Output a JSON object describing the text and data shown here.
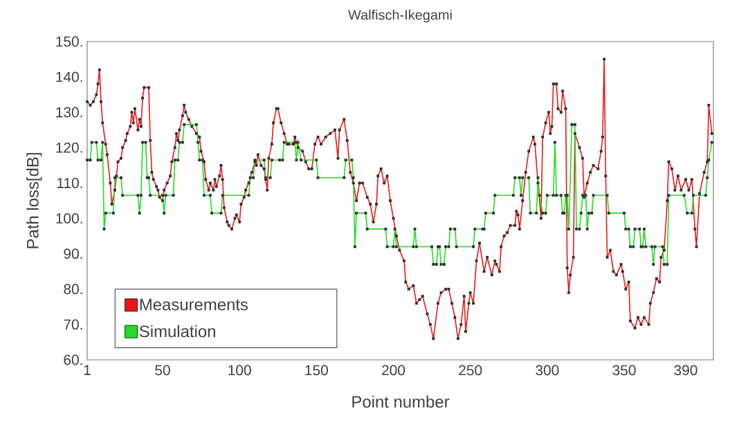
{
  "chart_data": {
    "type": "line",
    "title": "Walfisch-Ikegami",
    "xlabel": "Point number",
    "ylabel": "Path loss[dB]",
    "xlim": [
      1,
      408
    ],
    "xticks": [
      1,
      50,
      100,
      150,
      200,
      250,
      300,
      350,
      390
    ],
    "ylim": [
      60,
      150
    ],
    "yticks": [
      {
        "value": 60,
        "label": "60."
      },
      {
        "value": 70,
        "label": "70."
      },
      {
        "value": 80,
        "label": "80."
      },
      {
        "value": 90,
        "label": "90."
      },
      {
        "value": 100,
        "label": "100."
      },
      {
        "value": 110,
        "label": "110."
      },
      {
        "value": 120,
        "label": "120."
      },
      {
        "value": 130,
        "label": "130."
      },
      {
        "value": 140,
        "label": "140."
      },
      {
        "value": 150,
        "label": "150."
      }
    ],
    "legend": "bottom left",
    "marker": "square",
    "series": [
      {
        "name": "Measurements",
        "color": "#e81818",
        "x": [
          1,
          3,
          5,
          7,
          8,
          9,
          10,
          11,
          13,
          14,
          16,
          17,
          19,
          20,
          21,
          23,
          24,
          26,
          27,
          29,
          30,
          31,
          32,
          34,
          35,
          36,
          37,
          38,
          41,
          42,
          43,
          44,
          46,
          47,
          48,
          50,
          51,
          53,
          55,
          56,
          58,
          59,
          60,
          61,
          63,
          64,
          65,
          67,
          69,
          72,
          74,
          75,
          77,
          78,
          80,
          81,
          83,
          84,
          85,
          87,
          88,
          89,
          90,
          92,
          93,
          95,
          97,
          98,
          100,
          101,
          103,
          104,
          106,
          108,
          110,
          111,
          112,
          114,
          116,
          117,
          118,
          119,
          121,
          122,
          124,
          125,
          127,
          129,
          131,
          132,
          135,
          136,
          138,
          141,
          143,
          145,
          147,
          149,
          151,
          153,
          156,
          159,
          162,
          164,
          165,
          168,
          170,
          172,
          174,
          176,
          178,
          180,
          183,
          185,
          187,
          189,
          190,
          192,
          194,
          196,
          198,
          200,
          202,
          204,
          207,
          208,
          210,
          213,
          215,
          217,
          219,
          222,
          224,
          226,
          229,
          231,
          234,
          236,
          238,
          240,
          242,
          244,
          246,
          247,
          249,
          250,
          252,
          254,
          256,
          259,
          261,
          264,
          266,
          267,
          269,
          270,
          272,
          274,
          276,
          279,
          280,
          281,
          282,
          284,
          286,
          288,
          291,
          292,
          294,
          296,
          297,
          299,
          301,
          302,
          303,
          304,
          306,
          307,
          309,
          310,
          312,
          313,
          314,
          315,
          317,
          318,
          321,
          323,
          324,
          326,
          328,
          330,
          333,
          335,
          336,
          337,
          338,
          339,
          341,
          343,
          345,
          348,
          349,
          351,
          353,
          354,
          357,
          359,
          361,
          363,
          366,
          367,
          369,
          371,
          373,
          374,
          376,
          378,
          379,
          381,
          383,
          385,
          387,
          390,
          392,
          394,
          396,
          397,
          399,
          402,
          404,
          405,
          407
        ],
        "values": [
          133,
          132,
          133,
          135,
          138,
          142,
          133,
          127,
          121,
          118,
          110,
          104,
          108,
          112,
          116,
          117,
          120,
          122,
          124,
          126,
          130,
          127,
          131,
          125,
          128,
          126,
          134,
          137,
          137,
          122,
          113,
          111,
          109,
          108,
          106,
          105,
          108,
          110,
          112,
          116,
          120,
          124,
          122,
          125,
          129,
          132,
          130,
          128,
          126,
          124,
          123,
          119,
          116,
          111,
          108,
          110,
          108,
          111,
          109,
          112,
          115,
          111,
          103,
          99,
          98,
          97,
          100,
          101,
          99,
          104,
          106,
          108,
          110,
          113,
          116,
          115,
          118,
          115,
          114,
          111,
          108,
          117,
          121,
          127,
          131,
          131,
          127,
          124,
          121,
          121,
          121,
          123,
          120,
          119,
          116,
          114,
          114,
          121,
          123,
          121,
          123,
          124,
          125,
          117,
          125,
          128,
          122,
          113,
          110,
          105,
          110,
          110,
          106,
          104,
          99,
          104,
          112,
          114,
          110,
          112,
          105,
          100,
          95,
          91,
          88,
          82,
          80,
          81,
          76,
          77,
          78,
          73,
          70,
          66,
          76,
          79,
          80,
          80,
          76,
          72,
          66,
          70,
          78,
          68,
          76,
          79,
          76,
          88,
          93,
          85,
          89,
          84,
          88,
          87,
          85,
          92,
          95,
          96,
          98,
          98,
          102,
          101,
          97,
          105,
          113,
          119,
          123,
          121,
          110,
          100,
          123,
          127,
          130,
          124,
          126,
          138,
          138,
          131,
          130,
          136,
          131,
          86,
          79,
          84,
          89,
          124,
          120,
          117,
          106,
          110,
          113,
          115,
          114,
          119,
          123,
          145,
          112,
          89,
          91,
          85,
          84,
          87,
          85,
          80,
          82,
          71,
          69,
          72,
          70,
          72,
          70,
          76,
          79,
          83,
          82,
          89,
          91,
          105,
          116,
          114,
          108,
          112,
          108,
          111,
          108,
          111,
          97,
          92,
          107,
          113,
          116,
          132,
          124
        ]
      },
      {
        "name": "Simulation",
        "color": "#22dd22",
        "x": [
          1,
          3,
          4,
          7,
          8,
          10,
          11,
          12,
          13,
          18,
          19,
          23,
          24,
          34,
          35,
          36,
          37,
          39,
          40,
          41,
          42,
          50,
          51,
          52,
          57,
          58,
          60,
          61,
          63,
          64,
          72,
          73,
          74,
          76,
          77,
          81,
          82,
          88,
          89,
          106,
          107,
          109,
          110,
          116,
          117,
          120,
          121,
          126,
          128,
          129,
          136,
          137,
          138,
          140,
          150,
          151,
          168,
          169,
          173,
          174,
          175,
          176,
          182,
          183,
          195,
          196,
          200,
          201,
          202,
          213,
          214,
          215,
          225,
          226,
          228,
          229,
          230,
          231,
          233,
          234,
          236,
          237,
          240,
          241,
          252,
          253,
          258,
          259,
          260,
          265,
          266,
          278,
          279,
          282,
          283,
          284,
          288,
          289,
          293,
          294,
          295,
          297,
          299,
          300,
          304,
          305,
          306,
          309,
          310,
          311,
          312,
          313,
          314,
          316,
          318,
          319,
          321,
          322,
          323,
          325,
          326,
          327,
          329,
          330,
          339,
          340,
          350,
          351,
          353,
          354,
          356,
          357,
          360,
          361,
          362,
          363,
          364,
          368,
          369,
          370,
          375,
          376,
          378,
          379,
          389,
          391,
          394,
          395,
          403,
          404,
          405,
          407
        ],
        "values": [
          116.5,
          116.5,
          121.5,
          121.5,
          116.5,
          116.5,
          121.5,
          97,
          101.5,
          101.5,
          111.5,
          111.5,
          106.5,
          106.5,
          101.5,
          106.5,
          121.5,
          121.5,
          111.5,
          111.5,
          106.5,
          106.5,
          101.5,
          106.5,
          106.5,
          116.5,
          116.5,
          121.5,
          121.5,
          126.5,
          126.5,
          121.5,
          116.5,
          116.5,
          106.5,
          106.5,
          101.5,
          101.5,
          106.5,
          106.5,
          111.5,
          111.5,
          116.5,
          116.5,
          111.5,
          111.5,
          116.5,
          116.5,
          116.5,
          121.5,
          121.5,
          116.5,
          121.5,
          116.5,
          116.5,
          111.5,
          111.5,
          116.5,
          116.5,
          111.5,
          92,
          101.5,
          101.5,
          97,
          97,
          92,
          92,
          97,
          92,
          92,
          97,
          92,
          92,
          87,
          87,
          92,
          92,
          87,
          87,
          92,
          92,
          97,
          97,
          92,
          92,
          97,
          97,
          97,
          101.5,
          101.5,
          106.5,
          106.5,
          111.5,
          111.5,
          106.5,
          111.5,
          111.5,
          101.5,
          101.5,
          111.5,
          106.5,
          101.5,
          101.5,
          106.5,
          106.5,
          121.5,
          106.5,
          106.5,
          101.5,
          101.5,
          106.5,
          106.5,
          97,
          126.5,
          126.5,
          97,
          97,
          101.5,
          106.5,
          106.5,
          97,
          101.5,
          101.5,
          106.5,
          106.5,
          101.5,
          101.5,
          97,
          97,
          92,
          92,
          97,
          97,
          92,
          92,
          97,
          92,
          92,
          87,
          92,
          92,
          87,
          87,
          106.5,
          106.5,
          101.5,
          101.5,
          106.5,
          106.5,
          111.5,
          116.5,
          121.5
        ]
      }
    ]
  }
}
